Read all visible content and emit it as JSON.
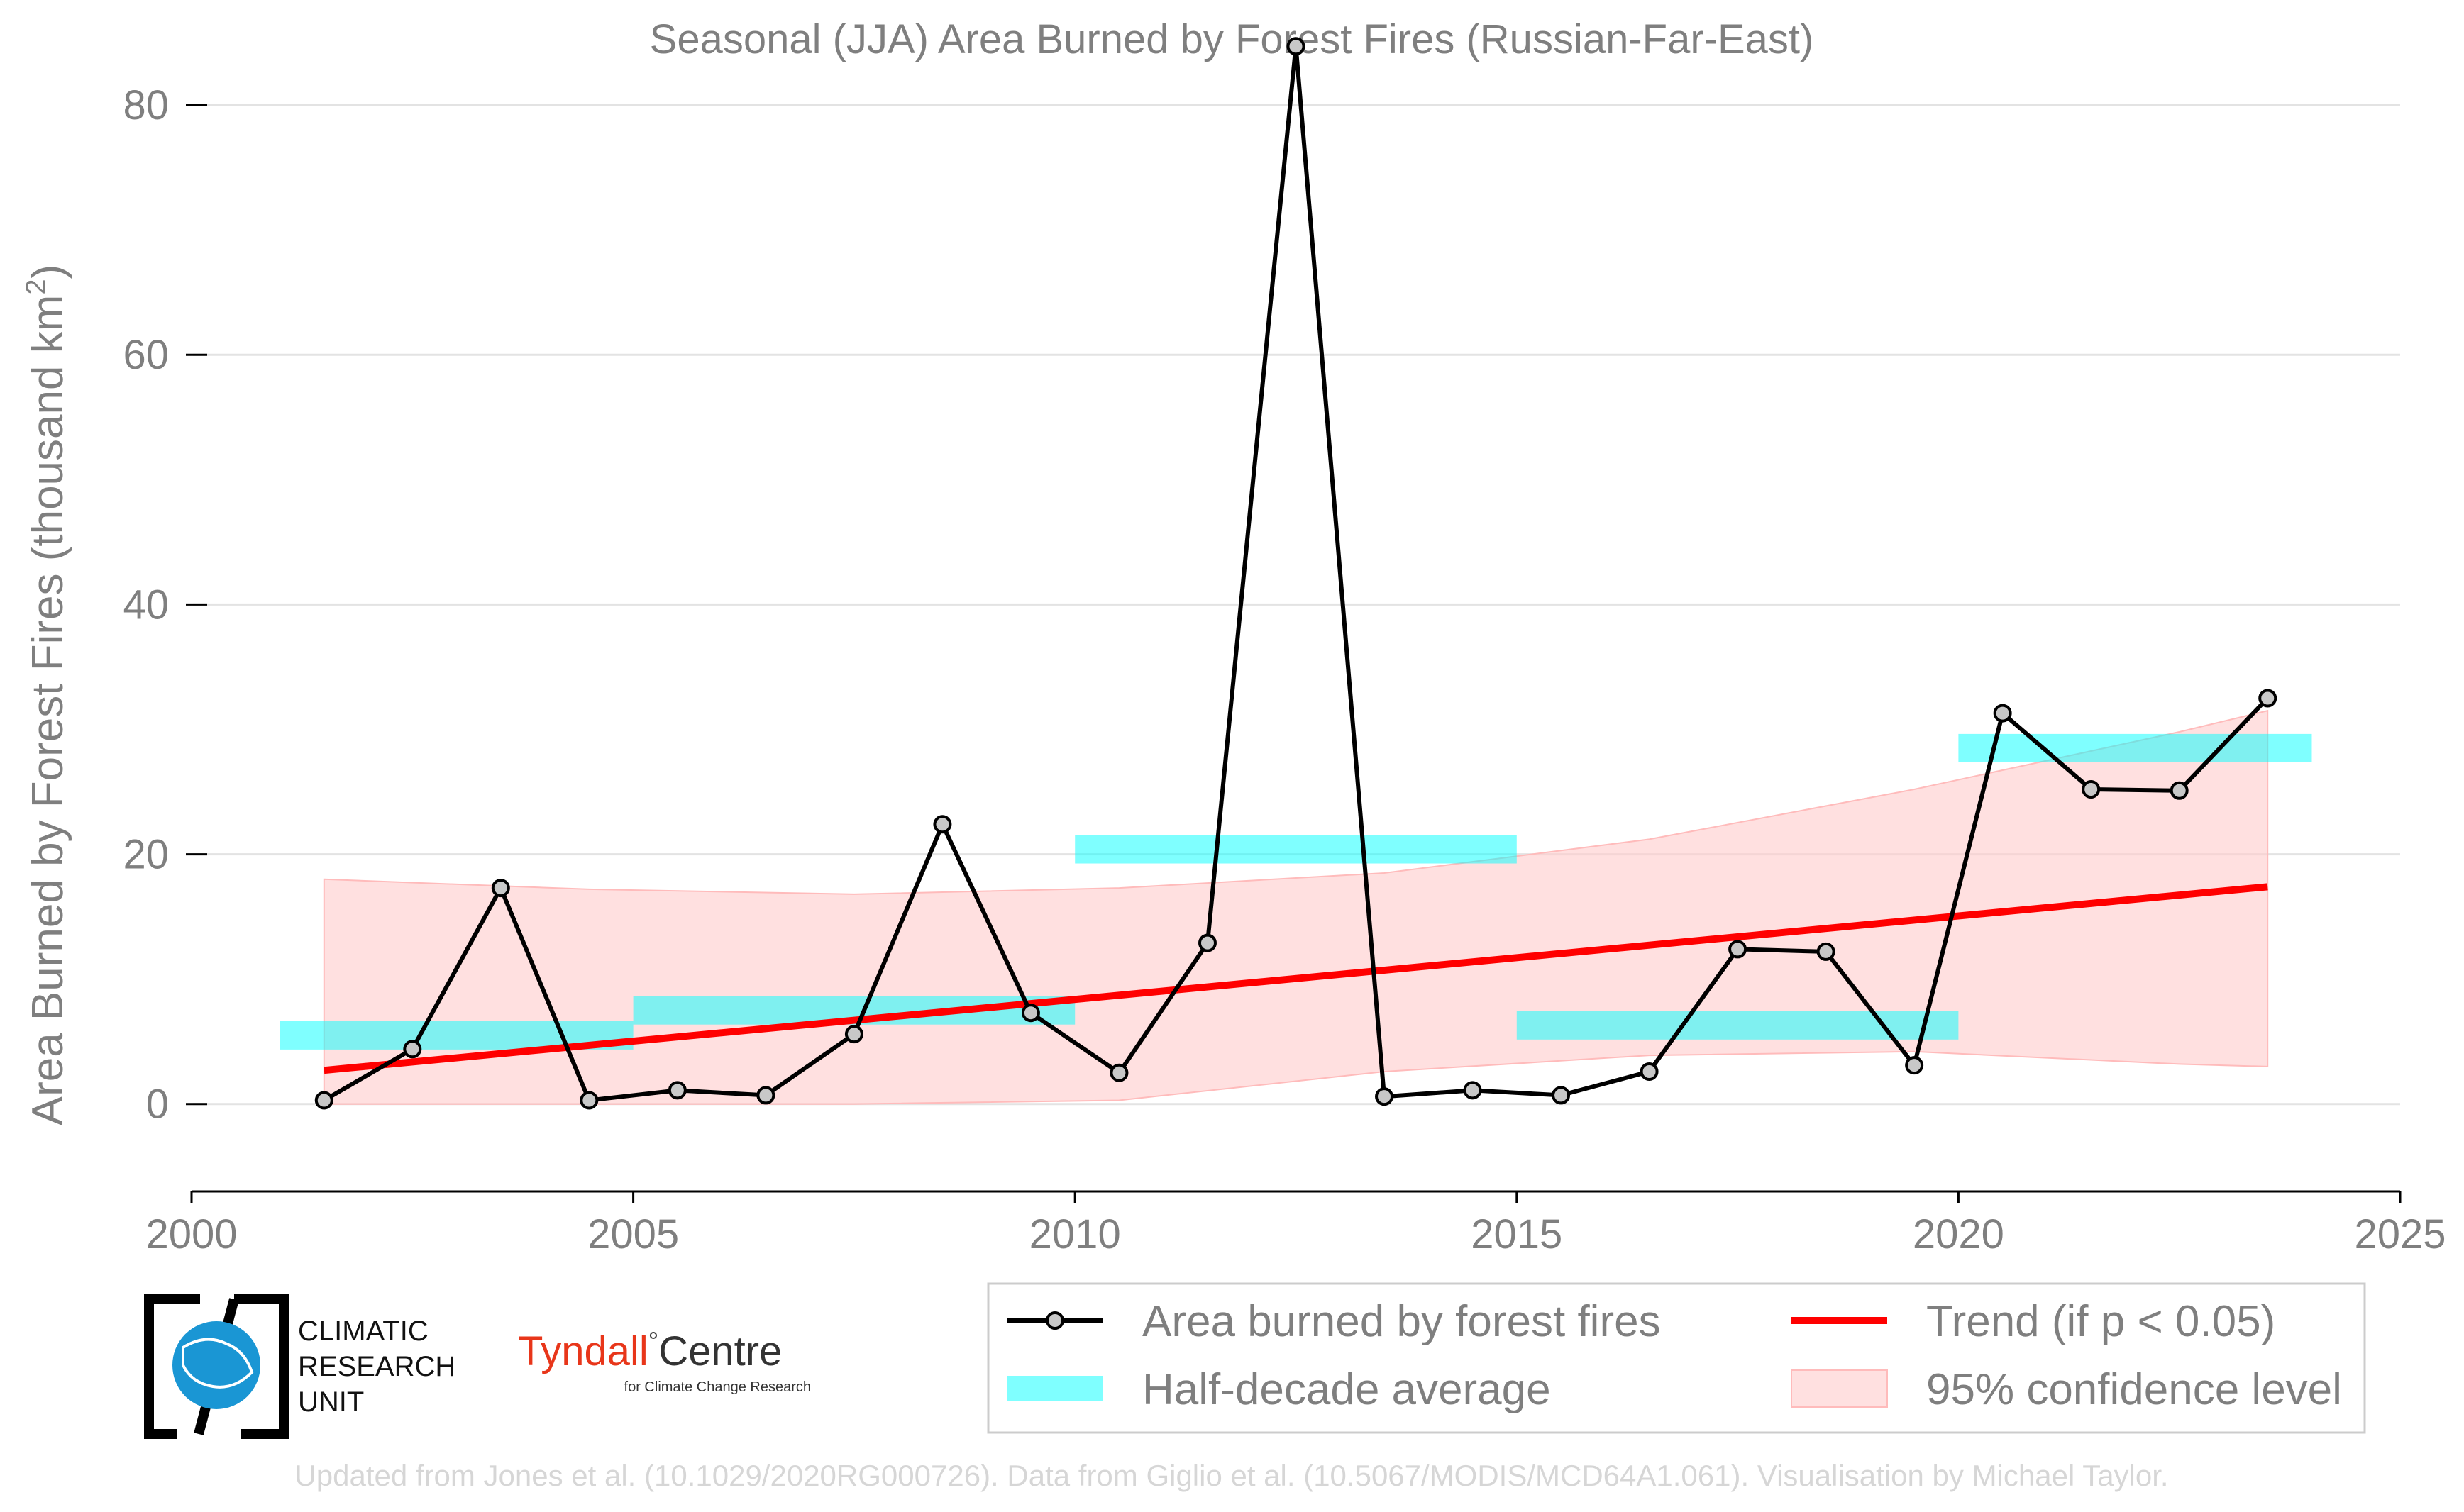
{
  "chart_data": {
    "type": "line",
    "title": "Seasonal (JJA) Area Burned by Forest Fires (Russian-Far-East)",
    "ylabel": "Area Burned by Forest Fires (thousand km",
    "ylabel_sup": "2",
    "ylabel_close": ")",
    "xlabel": "",
    "xlim": [
      2000,
      2025
    ],
    "ylim": [
      -7,
      85
    ],
    "x_ticks": [
      2000,
      2005,
      2010,
      2015,
      2020,
      2025
    ],
    "x_tick_labels": [
      "2000",
      "2005",
      "2010",
      "2015",
      "2020",
      "2025"
    ],
    "y_ticks": [
      0,
      20,
      40,
      60,
      80
    ],
    "y_tick_labels": [
      "0",
      "20",
      "40",
      "60",
      "80"
    ],
    "grid": "horizontal",
    "legend_position": "bottom-right",
    "series": [
      {
        "name": "Area burned by forest fires",
        "color": "#000000",
        "marker_fill": "#c8c8c8",
        "x": [
          2001.5,
          2002.5,
          2003.5,
          2004.5,
          2005.5,
          2006.5,
          2007.5,
          2008.5,
          2009.5,
          2010.5,
          2011.5,
          2012.5,
          2013.5,
          2014.5,
          2015.5,
          2016.5,
          2017.5,
          2018.5,
          2019.5,
          2020.5,
          2021.5,
          2022.5,
          2023.5
        ],
        "values": [
          0.3,
          4.4,
          17.3,
          0.3,
          1.1,
          0.7,
          5.6,
          22.4,
          7.3,
          2.5,
          12.9,
          84.7,
          0.6,
          1.1,
          0.7,
          2.6,
          12.4,
          12.2,
          3.1,
          31.3,
          25.2,
          25.1,
          32.5
        ]
      },
      {
        "name": "Half-decade average",
        "color": "#00ffff",
        "segments": [
          {
            "x0": 2001,
            "x1": 2005,
            "value": 5.5
          },
          {
            "x0": 2005,
            "x1": 2010,
            "value": 7.5
          },
          {
            "x0": 2010,
            "x1": 2015,
            "value": 20.4
          },
          {
            "x0": 2015,
            "x1": 2020,
            "value": 6.3
          },
          {
            "x0": 2020,
            "x1": 2024,
            "value": 28.5
          }
        ]
      },
      {
        "name": "Trend (if p < 0.05)",
        "color": "#ff0000",
        "x": [
          2001.5,
          2023.5
        ],
        "values": [
          2.7,
          17.4
        ]
      },
      {
        "name": "95% confidence level",
        "color": "#ffcccc",
        "x": [
          2001.5,
          2004.5,
          2007.5,
          2010.5,
          2013.5,
          2016.5,
          2019.5,
          2022.5,
          2023.5
        ],
        "upper": [
          18.0,
          17.2,
          16.8,
          17.3,
          18.5,
          21.2,
          25.2,
          29.8,
          31.5
        ],
        "lower": [
          0.0,
          0.0,
          0.0,
          0.3,
          2.6,
          3.9,
          4.2,
          3.2,
          3.0
        ]
      }
    ],
    "legend": {
      "entries": [
        "Area burned by forest fires",
        "Trend (if p < 0.05)",
        "Half-decade average",
        "95% confidence level"
      ]
    }
  },
  "logos": {
    "cru_line1": "CLIMATIC",
    "cru_line2": "RESEARCH",
    "cru_line3": "UNIT",
    "tyndall_name": "Tyndall",
    "tyndall_degree": "°",
    "tyndall_centre": "Centre",
    "tyndall_sub": "for Climate Change Research"
  },
  "credit": "Updated from Jones et al. (10.1029/2020RG000726). Data from Giglio et al. (10.5067/MODIS/MCD64A1.061). Visualisation by Michael Taylor."
}
